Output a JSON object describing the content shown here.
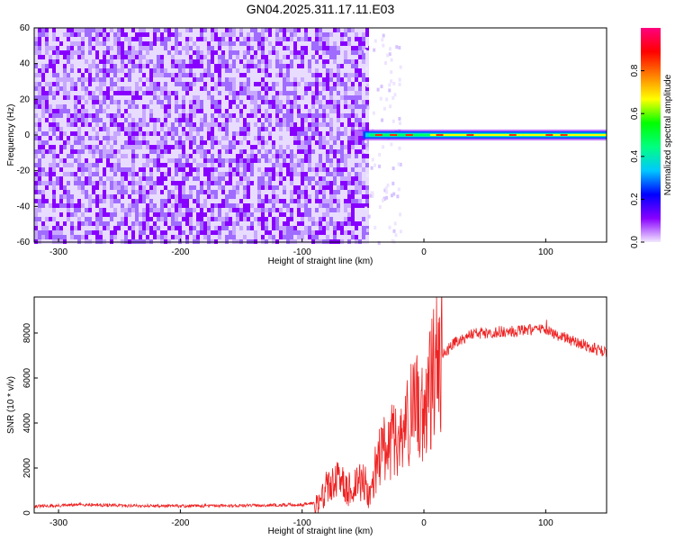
{
  "title": "GN04.2025.311.17.11.E03",
  "chart_data": [
    {
      "type": "heatmap",
      "xlabel": "Height of straight line (km)",
      "ylabel": "Frequency (Hz)",
      "xlim": [
        -320,
        150
      ],
      "ylim": [
        -60,
        60
      ],
      "xticks": [
        -300,
        -200,
        -100,
        0,
        100
      ],
      "yticks": [
        -60,
        -40,
        -20,
        0,
        20,
        40,
        60
      ],
      "colorbar": {
        "label": "Normalized spectral amplitude",
        "range": [
          0.0,
          1.0
        ],
        "ticks": [
          "0.0",
          "0.2",
          "0.4",
          "0.6",
          "0.8"
        ],
        "colors": [
          "#f2e8ff",
          "#8800ff",
          "#0000ff",
          "#00c8ff",
          "#00ff80",
          "#00ff00",
          "#ffff00",
          "#ff8000",
          "#ff0000",
          "#ff0080"
        ]
      },
      "regions": [
        {
          "x_range": [
            -320,
            -48
          ],
          "freq_range": [
            -60,
            60
          ],
          "amplitude": "0.0-0.2 noise"
        },
        {
          "x_range": [
            -60,
            150
          ],
          "freq_center": 0,
          "amplitude_peak": 0.9
        }
      ]
    },
    {
      "type": "line",
      "xlabel": "Height of straight line (km)",
      "ylabel": "SNR (10 * v/v)",
      "xlim": [
        -320,
        150
      ],
      "ylim": [
        0,
        9600
      ],
      "xticks": [
        -300,
        -200,
        -100,
        0,
        100
      ],
      "yticks": [
        0,
        2000,
        4000,
        6000,
        8000
      ],
      "color": "#ee2222",
      "series": [
        {
          "x": [
            -320,
            -300,
            -280,
            -250,
            -200,
            -150,
            -100,
            -85,
            -80,
            -70,
            -60,
            -50,
            -45,
            -40,
            -35,
            -30,
            -25,
            -20,
            -15,
            -10,
            -5,
            0,
            5,
            10,
            15,
            20,
            25,
            30,
            40,
            50,
            60,
            70,
            80,
            90,
            100,
            110,
            120,
            130,
            140,
            150
          ],
          "y": [
            300,
            320,
            380,
            330,
            310,
            330,
            370,
            500,
            1200,
            1400,
            1000,
            1500,
            800,
            1900,
            2600,
            3000,
            3300,
            3100,
            3800,
            4500,
            4800,
            4500,
            5500,
            6500,
            7100,
            7300,
            7600,
            7700,
            8000,
            8000,
            8050,
            8050,
            8100,
            8150,
            8150,
            7900,
            7700,
            7500,
            7300,
            7100
          ]
        }
      ]
    }
  ]
}
